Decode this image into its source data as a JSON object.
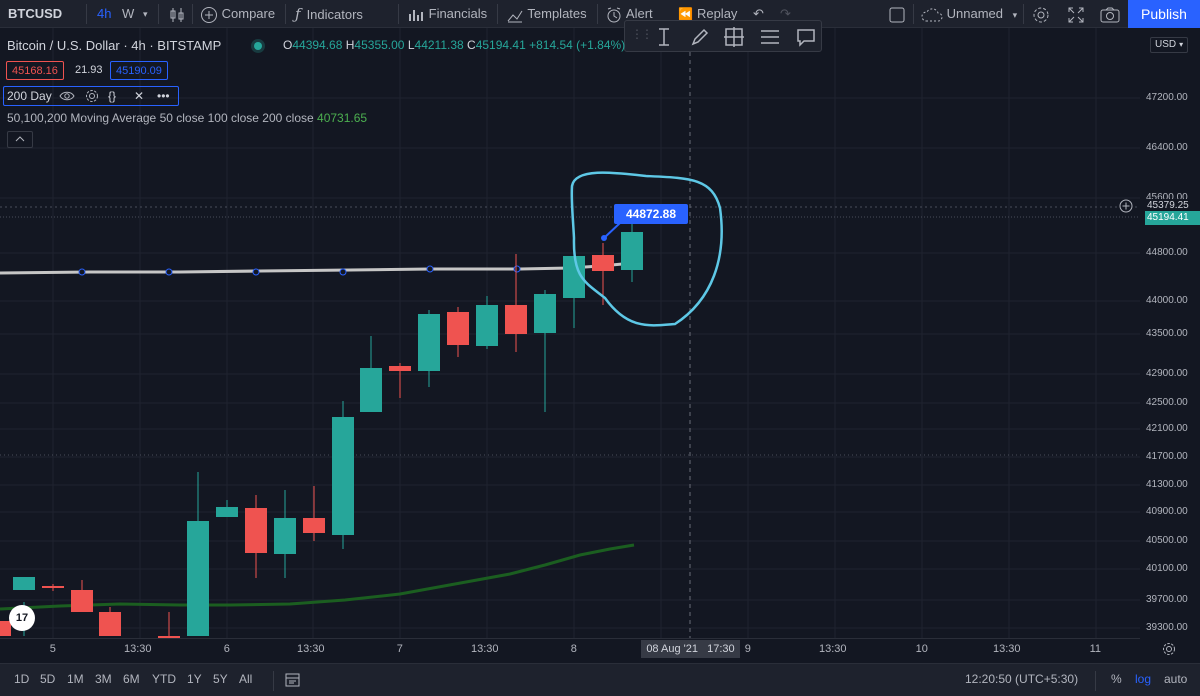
{
  "toolbar": {
    "symbol": "BTCUSD",
    "timeframe_active": "4h",
    "timeframe_other": "W",
    "compare": "Compare",
    "indicators": "Indicators",
    "financials": "Financials",
    "templates": "Templates",
    "alert": "Alert",
    "replay": "Replay",
    "layout_name": "Unnamed",
    "publish": "Publish"
  },
  "legend": {
    "title": "Bitcoin / U.S. Dollar · 4h · BITSTAMP",
    "o_label": "O",
    "o": "44394.68",
    "h_label": "H",
    "h": "45355.00",
    "l_label": "L",
    "l": "44211.38",
    "c_label": "C",
    "c": "45194.41",
    "change": "+814.54 (+1.84%)",
    "sell": "45168.16",
    "spread": "21.93",
    "buy": "45190.09"
  },
  "indicator": {
    "label": "200 Day",
    "ma_name": "50,100,200 Moving Average",
    "ma_params": "50 close 100 close 200 close",
    "ma_value": "40731.65"
  },
  "price_scale": {
    "currency": "USD",
    "ticks": [
      "47200.00",
      "46400.00",
      "45600.00",
      "44800.00",
      "44000.00",
      "43500.00",
      "42900.00",
      "42500.00",
      "42100.00",
      "41700.00",
      "41300.00",
      "40900.00",
      "40500.00",
      "40100.00",
      "39700.00",
      "39300.00"
    ],
    "alert_price": "45379.25",
    "last_price": "45194.41"
  },
  "annotation": {
    "callout_value": "44872.88"
  },
  "time_axis": {
    "labels": [
      "5",
      "13:30",
      "6",
      "13:30",
      "7",
      "13:30",
      "8",
      "9",
      "13:30",
      "10",
      "13:30",
      "11"
    ],
    "crosshair_date": "08 Aug '21",
    "crosshair_time": "17:30"
  },
  "bottombar": {
    "ranges": [
      "1D",
      "5D",
      "1M",
      "3M",
      "6M",
      "YTD",
      "1Y",
      "5Y",
      "All"
    ],
    "clock": "12:20:50 (UTC+5:30)",
    "percent": "%",
    "log": "log",
    "auto": "auto"
  },
  "colors": {
    "up": "#26a69a",
    "down": "#ef5350",
    "accent": "#2962ff",
    "ma_slow": "#1b5e20",
    "ma_fast": "#c6c6c6"
  }
}
